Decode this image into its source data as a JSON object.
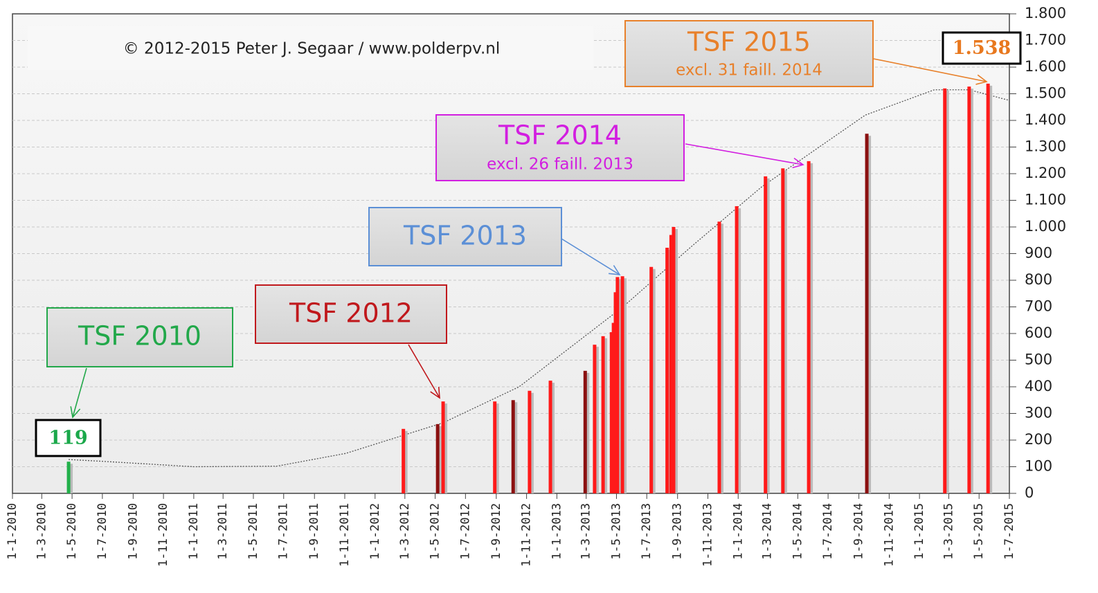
{
  "chart_data": {
    "type": "bar",
    "subtitle": "© 2012-2015 Peter J. Segaar / www.polderpv.nl",
    "x": [
      "2010-04-24",
      "2012-02-27",
      "2012-05-06",
      "2012-05-17",
      "2012-08-29",
      "2012-10-05",
      "2012-11-07",
      "2012-12-19",
      "2013-02-27",
      "2013-03-18",
      "2013-04-04",
      "2013-04-21",
      "2013-04-25",
      "2013-04-29",
      "2013-05-03",
      "2013-05-13",
      "2013-07-10",
      "2013-08-11",
      "2013-08-19",
      "2013-08-24",
      "2013-11-24",
      "2013-12-29",
      "2014-02-25",
      "2014-04-01",
      "2014-05-23",
      "2014-09-17",
      "2015-02-21",
      "2015-04-11",
      "2015-05-19"
    ],
    "values": [
      119,
      242,
      260,
      345,
      345,
      350,
      385,
      423,
      460,
      558,
      590,
      605,
      640,
      755,
      812,
      815,
      850,
      922,
      970,
      1000,
      1020,
      1078,
      1190,
      1220,
      1247,
      1350,
      1520,
      1527,
      1538
    ],
    "colors": [
      "#22b04a",
      "#ff1a1a",
      "#8b1010",
      "#ff1a1a",
      "#ff1a1a",
      "#8b1010",
      "#ff1a1a",
      "#ff1a1a",
      "#8b1010",
      "#ff1a1a",
      "#ff1a1a",
      "#ff1a1a",
      "#ff1a1a",
      "#ff1a1a",
      "#ff1a1a",
      "#ff1a1a",
      "#ff1a1a",
      "#ff1a1a",
      "#ff1a1a",
      "#ff1a1a",
      "#ff1a1a",
      "#ff1a1a",
      "#ff1a1a",
      "#ff1a1a",
      "#ff1a1a",
      "#8b1010",
      "#ff1a1a",
      "#ff1a1a",
      "#ff1a1a"
    ],
    "value_labels": [
      "119",
      null,
      null,
      null,
      null,
      null,
      null,
      null,
      null,
      null,
      null,
      null,
      null,
      null,
      null,
      null,
      null,
      null,
      null,
      null,
      null,
      null,
      null,
      null,
      null,
      null,
      null,
      null,
      "1.538"
    ],
    "value_label_colors": [
      "#1aa84a",
      "#e8781e"
    ],
    "trend": {
      "color": "#555555",
      "x": [
        "2010-04-24",
        "2010-07-04",
        "2011-01-01",
        "2011-06-17",
        "2011-11-03",
        "2012-05-17",
        "2012-10-17",
        "2013-05-14",
        "2013-10-01",
        "2014-02-17",
        "2014-09-14",
        "2015-01-31",
        "2015-04-11",
        "2015-07-01"
      ],
      "values": [
        127,
        120,
        100,
        102,
        150,
        265,
        400,
        700,
        930,
        1150,
        1420,
        1515,
        1515,
        1475
      ]
    },
    "annotations": [
      {
        "text": "TSF 2010",
        "color": "#22a84a"
      },
      {
        "text": "TSF 2012",
        "color": "#c0181c"
      },
      {
        "text": "TSF 2013",
        "color": "#5b8fd6"
      },
      {
        "text": "TSF 2014",
        "subtext": "excl. 26 faill. 2013",
        "color": "#d21ee0"
      },
      {
        "text": "TSF 2015",
        "subtext": "excl. 31 faill. 2014",
        "color": "#e8802a"
      }
    ],
    "xlim": [
      "2010-01-01",
      "2015-07-01"
    ],
    "xticks": [
      {
        "value": "2010-01-01",
        "label": "1-1-2010"
      },
      {
        "value": "2010-03-01",
        "label": "1-3-2010"
      },
      {
        "value": "2010-05-01",
        "label": "1-5-2010"
      },
      {
        "value": "2010-07-01",
        "label": "1-7-2010"
      },
      {
        "value": "2010-09-01",
        "label": "1-9-2010"
      },
      {
        "value": "2010-11-01",
        "label": "1-11-2010"
      },
      {
        "value": "2011-01-01",
        "label": "1-1-2011"
      },
      {
        "value": "2011-03-01",
        "label": "1-3-2011"
      },
      {
        "value": "2011-05-01",
        "label": "1-5-2011"
      },
      {
        "value": "2011-07-01",
        "label": "1-7-2011"
      },
      {
        "value": "2011-09-01",
        "label": "1-9-2011"
      },
      {
        "value": "2011-11-01",
        "label": "1-11-2011"
      },
      {
        "value": "2012-01-01",
        "label": "1-1-2012"
      },
      {
        "value": "2012-03-01",
        "label": "1-3-2012"
      },
      {
        "value": "2012-05-01",
        "label": "1-5-2012"
      },
      {
        "value": "2012-07-01",
        "label": "1-7-2012"
      },
      {
        "value": "2012-09-01",
        "label": "1-9-2012"
      },
      {
        "value": "2012-11-01",
        "label": "1-11-2012"
      },
      {
        "value": "2013-01-01",
        "label": "1-1-2013"
      },
      {
        "value": "2013-03-01",
        "label": "1-3-2013"
      },
      {
        "value": "2013-05-01",
        "label": "1-5-2013"
      },
      {
        "value": "2013-07-01",
        "label": "1-7-2013"
      },
      {
        "value": "2013-09-01",
        "label": "1-9-2013"
      },
      {
        "value": "2013-11-01",
        "label": "1-11-2013"
      },
      {
        "value": "2014-01-01",
        "label": "1-1-2014"
      },
      {
        "value": "2014-03-01",
        "label": "1-3-2014"
      },
      {
        "value": "2014-05-01",
        "label": "1-5-2014"
      },
      {
        "value": "2014-07-01",
        "label": "1-7-2014"
      },
      {
        "value": "2014-09-01",
        "label": "1-9-2014"
      },
      {
        "value": "2014-11-01",
        "label": "1-11-2014"
      },
      {
        "value": "2015-01-01",
        "label": "1-1-2015"
      },
      {
        "value": "2015-03-01",
        "label": "1-3-2015"
      },
      {
        "value": "2015-05-01",
        "label": "1-5-2015"
      },
      {
        "value": "2015-07-01",
        "label": "1-7-2015"
      }
    ],
    "ylim": [
      0,
      1800
    ],
    "yticks": [
      0,
      100,
      200,
      300,
      400,
      500,
      600,
      700,
      800,
      900,
      {
        "value": 1000,
        "label": "1.000"
      },
      {
        "value": 1100,
        "label": "1.100"
      },
      {
        "value": 1200,
        "label": "1.200"
      },
      {
        "value": 1300,
        "label": "1.300"
      },
      {
        "value": 1400,
        "label": "1.400"
      },
      {
        "value": 1500,
        "label": "1.500"
      },
      {
        "value": 1600,
        "label": "1.600"
      },
      {
        "value": 1700,
        "label": "1.700"
      },
      {
        "value": 1800,
        "label": "1.800"
      }
    ],
    "grid": true
  }
}
